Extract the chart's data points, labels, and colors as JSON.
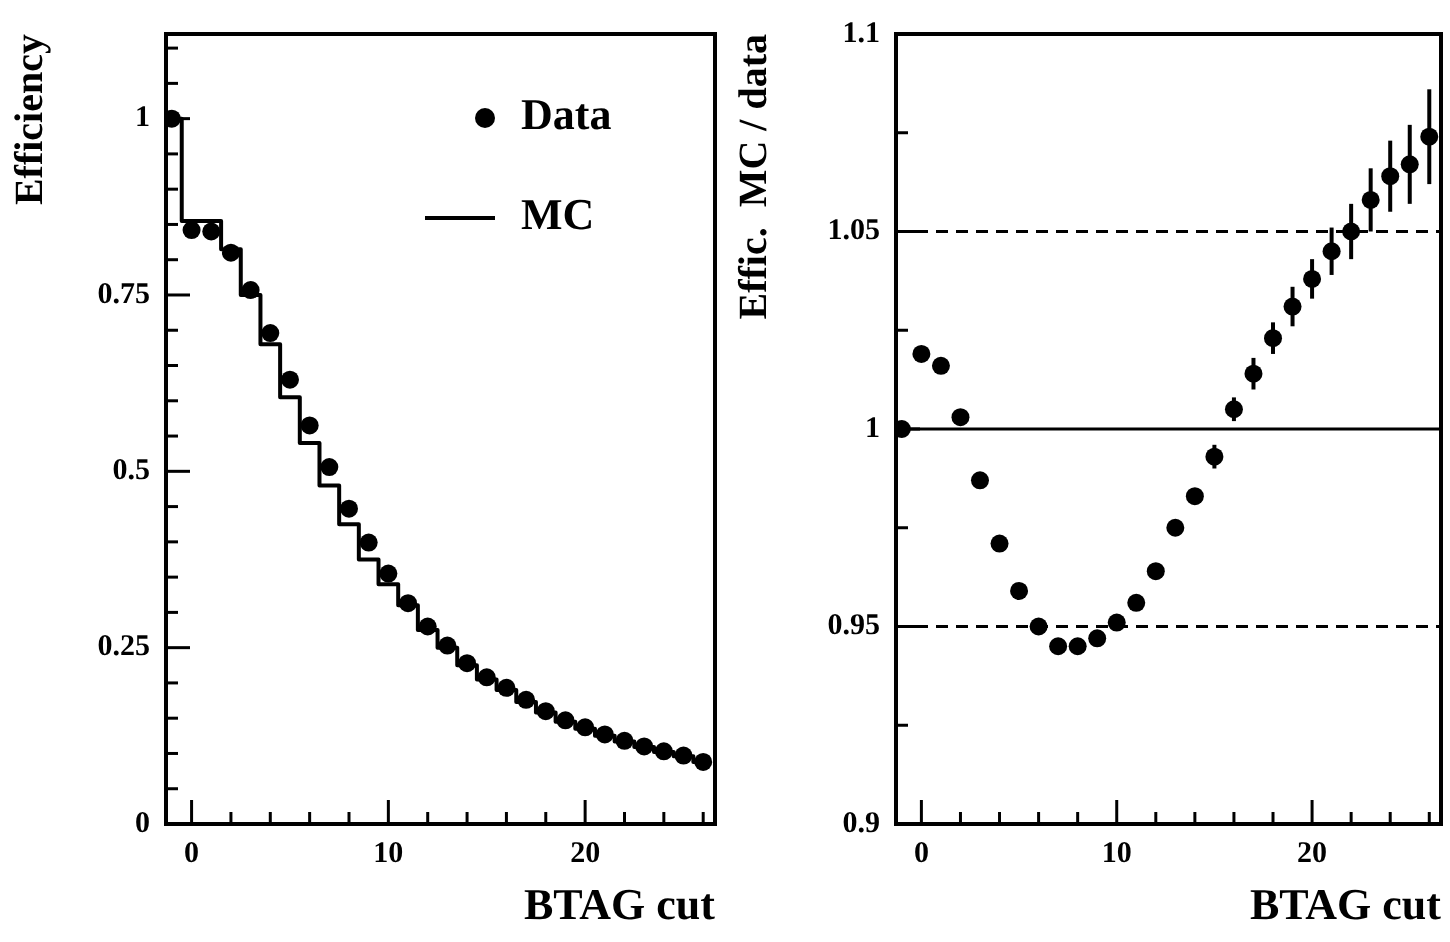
{
  "chart_data": [
    {
      "type": "scatter",
      "ylabel": "Efficiency",
      "xlabel": "BTAG cut",
      "legend": "top right",
      "marker": "circle",
      "x": [
        -1,
        0,
        1,
        2,
        3,
        4,
        5,
        6,
        7,
        8,
        9,
        10,
        11,
        12,
        13,
        14,
        15,
        16,
        17,
        18,
        19,
        20,
        21,
        22,
        23,
        24,
        25,
        26
      ],
      "series": [
        {
          "name": "Data",
          "color": "#000000",
          "values": [
            1.0,
            0.842,
            0.84,
            0.81,
            0.757,
            0.696,
            0.63,
            0.565,
            0.506,
            0.447,
            0.399,
            0.355,
            0.313,
            0.28,
            0.253,
            0.228,
            0.208,
            0.193,
            0.176,
            0.16,
            0.147,
            0.137,
            0.127,
            0.118,
            0.11,
            0.103,
            0.097,
            0.088
          ]
        },
        {
          "name": "MC",
          "type": "step",
          "marker": "none",
          "color": "#000000",
          "values": [
            1.0,
            0.855,
            0.855,
            0.815,
            0.75,
            0.68,
            0.605,
            0.54,
            0.48,
            0.425,
            0.375,
            0.34,
            0.31,
            0.275,
            0.25,
            0.225,
            0.205,
            0.19,
            0.173,
            0.158,
            0.145,
            0.135,
            0.125,
            0.117,
            0.109,
            0.102,
            0.096,
            0.088
          ]
        }
      ],
      "xlim": [
        -1.3,
        26.6
      ],
      "xticks": [
        0,
        {
          "value": 2,
          "label": null
        },
        {
          "value": 4,
          "label": null
        },
        {
          "value": 6,
          "label": null
        },
        {
          "value": 8,
          "label": null
        },
        10,
        {
          "value": 12,
          "label": null
        },
        {
          "value": 14,
          "label": null
        },
        {
          "value": 16,
          "label": null
        },
        {
          "value": 18,
          "label": null
        },
        20,
        {
          "value": 22,
          "label": null
        },
        {
          "value": 24,
          "label": null
        },
        {
          "value": 26,
          "label": null
        }
      ],
      "ylim": [
        0,
        1.12
      ],
      "yticks": [
        0,
        {
          "value": 0.05,
          "label": null
        },
        {
          "value": 0.1,
          "label": null
        },
        {
          "value": 0.15,
          "label": null
        },
        {
          "value": 0.2,
          "label": null
        },
        0.25,
        {
          "value": 0.3,
          "label": null
        },
        {
          "value": 0.35,
          "label": null
        },
        {
          "value": 0.4,
          "label": null
        },
        {
          "value": 0.45,
          "label": null
        },
        0.5,
        {
          "value": 0.55,
          "label": null
        },
        {
          "value": 0.6,
          "label": null
        },
        {
          "value": 0.65,
          "label": null
        },
        {
          "value": 0.7,
          "label": null
        },
        0.75,
        {
          "value": 0.8,
          "label": null
        },
        {
          "value": 0.85,
          "label": null
        },
        {
          "value": 0.9,
          "label": null
        },
        {
          "value": 0.95,
          "label": null
        },
        1,
        {
          "value": 1.05,
          "label": null
        },
        {
          "value": 1.1,
          "label": null
        }
      ]
    },
    {
      "type": "scatter",
      "ylabel": "Effic.  MC / data",
      "xlabel": "BTAG cut",
      "marker": "circle",
      "color": "#000000",
      "x": [
        -1,
        0,
        1,
        2,
        3,
        4,
        5,
        6,
        7,
        8,
        9,
        10,
        11,
        12,
        13,
        14,
        15,
        16,
        17,
        18,
        19,
        20,
        21,
        22,
        23,
        24,
        25,
        26
      ],
      "values": [
        1.0,
        1.019,
        1.016,
        1.003,
        0.987,
        0.971,
        0.959,
        0.95,
        0.945,
        0.945,
        0.947,
        0.951,
        0.956,
        0.964,
        0.975,
        0.983,
        0.993,
        1.005,
        1.014,
        1.023,
        1.031,
        1.038,
        1.045,
        1.05,
        1.058,
        1.064,
        1.067,
        1.074
      ],
      "errors": [
        null,
        null,
        null,
        null,
        null,
        null,
        null,
        null,
        null,
        null,
        null,
        null,
        null,
        null,
        null,
        0.002,
        0.003,
        0.003,
        0.004,
        0.004,
        0.005,
        0.005,
        0.006,
        0.007,
        0.008,
        0.009,
        0.01,
        0.012
      ],
      "ref_lines": [
        {
          "axis": "y",
          "value": 1,
          "line_style": "solid",
          "color": "#000000"
        },
        {
          "axis": "y",
          "value": 1.05,
          "line_style": "dashed",
          "color": "#000000"
        },
        {
          "axis": "y",
          "value": 0.95,
          "line_style": "dashed",
          "color": "#000000"
        }
      ],
      "xlim": [
        -1.3,
        26.6
      ],
      "xticks": [
        0,
        {
          "value": 2,
          "label": null
        },
        {
          "value": 4,
          "label": null
        },
        {
          "value": 6,
          "label": null
        },
        {
          "value": 8,
          "label": null
        },
        10,
        {
          "value": 12,
          "label": null
        },
        {
          "value": 14,
          "label": null
        },
        {
          "value": 16,
          "label": null
        },
        {
          "value": 18,
          "label": null
        },
        20,
        {
          "value": 22,
          "label": null
        },
        {
          "value": 24,
          "label": null
        },
        {
          "value": 26,
          "label": null
        }
      ],
      "ylim": [
        0.9,
        1.1
      ],
      "yticks": [
        0.9,
        {
          "value": 0.925,
          "label": null
        },
        0.95,
        {
          "value": 0.975,
          "label": null
        },
        1,
        {
          "value": 1.025,
          "label": null
        },
        1.05,
        {
          "value": 1.075,
          "label": null
        },
        1.1
      ]
    }
  ]
}
